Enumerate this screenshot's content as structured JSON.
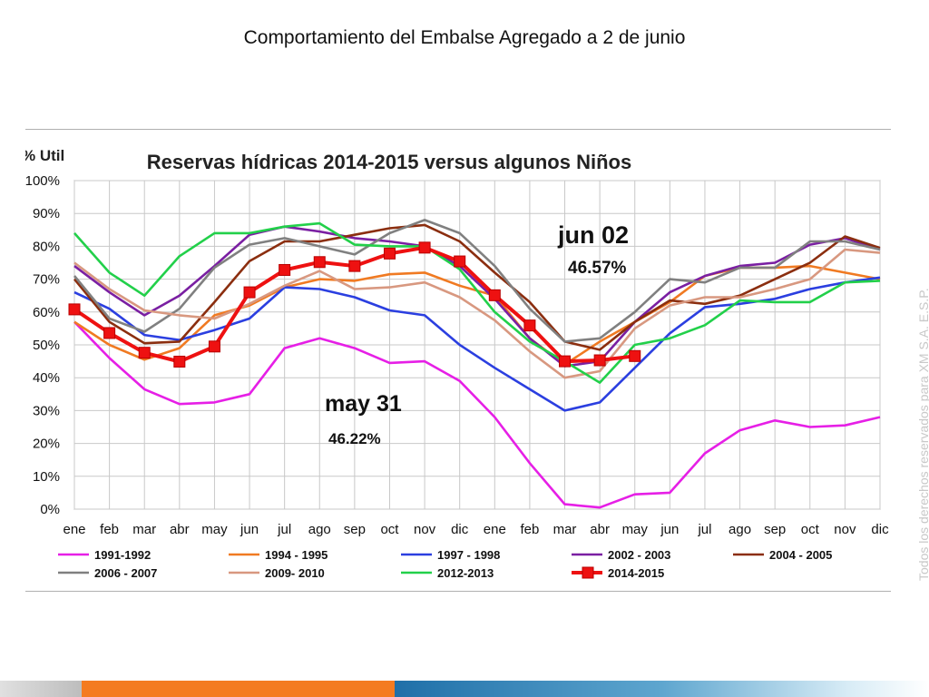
{
  "slide": {
    "title": "Comportamiento del Embalse Agregado a 2 de junio",
    "watermark": "Todos los derechos reservados para XM S.A. E.S.P."
  },
  "chart_data": {
    "type": "line",
    "title": "Reservas hídricas 2014-2015 versus algunos Niños",
    "ylabel": "% Util",
    "ylim": [
      0,
      100
    ],
    "yticks": [
      "0%",
      "10%",
      "20%",
      "30%",
      "40%",
      "50%",
      "60%",
      "70%",
      "80%",
      "90%",
      "100%"
    ],
    "categories": [
      "ene",
      "feb",
      "mar",
      "abr",
      "may",
      "jun",
      "jul",
      "ago",
      "sep",
      "oct",
      "nov",
      "dic",
      "ene",
      "feb",
      "mar",
      "abr",
      "may",
      "jun",
      "jul",
      "ago",
      "sep",
      "oct",
      "nov",
      "dic"
    ],
    "grid": true,
    "legend_position": "bottom",
    "series": [
      {
        "name": "1991-1992",
        "color": "#e61fe6",
        "values": [
          57,
          46,
          36.5,
          32,
          32.5,
          35,
          49,
          52,
          49,
          44.5,
          45,
          39,
          28,
          14,
          1.5,
          0.5,
          4.5,
          5,
          17,
          24,
          27,
          25,
          25.5,
          28
        ]
      },
      {
        "name": "1994 - 1995",
        "color": "#f07a22",
        "values": [
          57,
          50,
          45.5,
          49,
          59,
          62,
          67.5,
          70,
          69.5,
          71.5,
          72,
          68,
          65,
          52,
          44,
          51,
          57,
          63,
          71,
          73.5,
          73.5,
          74,
          72,
          70
        ]
      },
      {
        "name": "1997 - 1998",
        "color": "#2b3fe0",
        "values": [
          66,
          61,
          53,
          51.5,
          54.5,
          58,
          67.5,
          67,
          64.5,
          60.5,
          59,
          50,
          43,
          36.5,
          30,
          32.5,
          43,
          53.5,
          61.5,
          62.5,
          64,
          67,
          69,
          70.5
        ]
      },
      {
        "name": "2002 - 2003",
        "color": "#7a1fa2",
        "values": [
          74,
          66,
          59,
          65,
          74,
          83.5,
          86,
          84.5,
          82.5,
          81.5,
          80,
          74,
          64,
          52,
          43.5,
          45,
          57,
          66,
          71,
          74,
          75,
          80.5,
          82.5,
          79
        ]
      },
      {
        "name": "2004 - 2005",
        "color": "#8b2e0f",
        "values": [
          70,
          57,
          50.5,
          51,
          63,
          75.5,
          81.5,
          81.5,
          83.5,
          85.5,
          86.5,
          81.5,
          72,
          63,
          51,
          48.5,
          57,
          63.5,
          62.5,
          65,
          70,
          75,
          83,
          79.5
        ]
      },
      {
        "name": "2006 - 2007",
        "color": "#808080",
        "values": [
          71,
          58,
          54,
          61,
          73.5,
          80.5,
          82.5,
          80,
          77.5,
          84,
          88,
          84,
          74,
          61,
          51,
          52,
          60,
          70,
          69,
          73.5,
          73.5,
          81.5,
          81.5,
          79
        ]
      },
      {
        "name": "2009- 2010",
        "color": "#d89880",
        "values": [
          75,
          67,
          60.5,
          59,
          58,
          62.5,
          68,
          72.5,
          67,
          67.5,
          69,
          64.5,
          57.5,
          48,
          40,
          42,
          55,
          62,
          64.5,
          64.5,
          67,
          70,
          79,
          78
        ]
      },
      {
        "name": "2012-2013",
        "color": "#22d04a",
        "values": [
          84,
          72,
          65,
          77,
          84,
          84,
          86,
          87,
          80.5,
          80,
          80,
          73,
          60,
          51,
          45,
          38.5,
          50,
          52,
          56,
          63.5,
          63,
          63,
          69,
          69.5
        ]
      },
      {
        "name": "2014-2015",
        "color": "#ee1111",
        "marker": true,
        "values": [
          60.8,
          53.6,
          47.6,
          44.9,
          49.5,
          66,
          72.8,
          75.2,
          74,
          77.8,
          79.6,
          75.4,
          65.1,
          55.9,
          45,
          45.3,
          46.6,
          null,
          null,
          null,
          null,
          null,
          null,
          null
        ]
      }
    ],
    "annotations": [
      {
        "label": "jun 02",
        "value": "46.57%"
      },
      {
        "label": "may 31",
        "value": "46.22%"
      }
    ]
  }
}
